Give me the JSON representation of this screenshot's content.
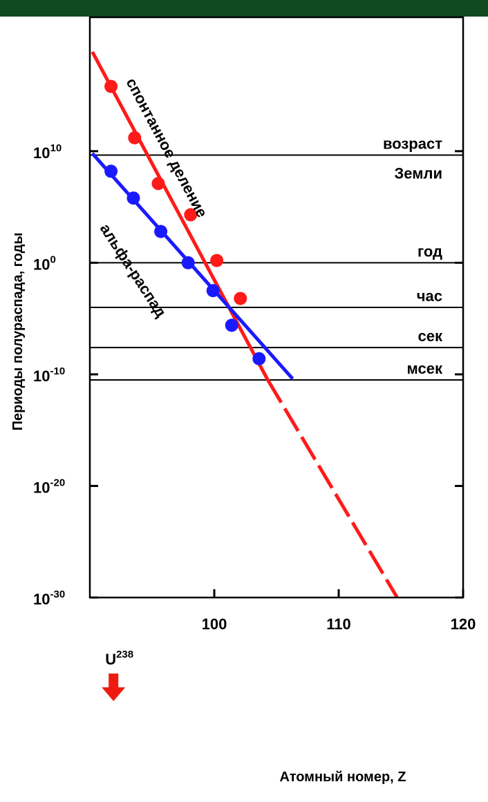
{
  "chart_data": {
    "type": "scatter",
    "xlabel": "Атомный номер, Z",
    "ylabel": "Периоды полураспада, годы",
    "xlim": [
      90,
      120
    ],
    "ylim": [
      -30,
      22
    ],
    "y_scale": "log",
    "x_ticks": [
      {
        "value": 100,
        "label": "100"
      },
      {
        "value": 110,
        "label": "110"
      },
      {
        "value": 120,
        "label": "120"
      }
    ],
    "y_ticks": [
      {
        "exp": 10,
        "base": "10",
        "sup": "10"
      },
      {
        "exp": 0,
        "base": "10",
        "sup": "0"
      },
      {
        "exp": -10,
        "base": "10",
        "sup": "-10"
      },
      {
        "exp": -20,
        "base": "10",
        "sup": "-20"
      },
      {
        "exp": -30,
        "base": "10",
        "sup": "-30"
      }
    ],
    "grid": false,
    "reference_lines": [
      {
        "exp": 9.65,
        "labels": [
          "возраст",
          "Земли"
        ]
      },
      {
        "exp": 0,
        "labels": [
          "год"
        ]
      },
      {
        "exp": -4,
        "labels": [
          "час"
        ]
      },
      {
        "exp": -7.6,
        "labels": [
          "сек"
        ]
      },
      {
        "exp": -10.5,
        "labels": [
          "мсек"
        ]
      }
    ],
    "series": [
      {
        "name": "спонтанное деление",
        "color": "#ff1a1a",
        "points": [
          [
            91.7,
            15.8
          ],
          [
            93.6,
            11.2
          ],
          [
            95.5,
            7.1
          ],
          [
            98.1,
            4.3
          ],
          [
            100.2,
            0.2
          ],
          [
            102.1,
            -3.2
          ]
        ],
        "fit_solid": [
          [
            90.2,
            18.9
          ],
          [
            104.3,
            -10.5
          ]
        ],
        "fit_dashed": [
          [
            104.3,
            -10.5
          ],
          [
            114.7,
            -30
          ]
        ]
      },
      {
        "name": "альфа-распад",
        "color": "#1a1aff",
        "points": [
          [
            91.7,
            8.2
          ],
          [
            93.5,
            5.8
          ],
          [
            95.7,
            2.8
          ],
          [
            97.9,
            0.0
          ],
          [
            99.9,
            -2.5
          ],
          [
            101.4,
            -5.6
          ],
          [
            103.6,
            -8.6
          ]
        ],
        "fit_solid": [
          [
            90.2,
            9.8
          ],
          [
            106.3,
            -10.4
          ]
        ]
      }
    ],
    "marker": {
      "label": "U",
      "sup": "238",
      "x": 91.9,
      "color": "#ee1c10"
    }
  }
}
